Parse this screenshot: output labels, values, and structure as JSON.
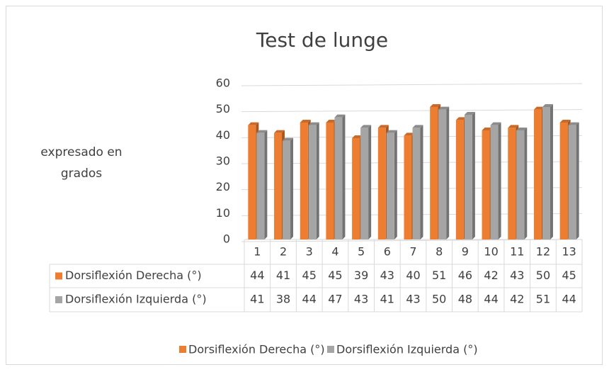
{
  "chart_data": {
    "type": "bar",
    "title": "Test de lunge",
    "y_label": "expresado en grados",
    "categories": [
      "1",
      "2",
      "3",
      "4",
      "5",
      "6",
      "7",
      "8",
      "9",
      "10",
      "11",
      "12",
      "13"
    ],
    "series": [
      {
        "name": "Dorsiflexión Derecha (°)",
        "color": "#ED7D31",
        "values": [
          44,
          41,
          45,
          45,
          39,
          43,
          40,
          51,
          46,
          42,
          43,
          50,
          45
        ]
      },
      {
        "name": "Dorsiflexión Izquierda (°)",
        "color": "#A5A5A5",
        "values": [
          41,
          38,
          44,
          47,
          43,
          41,
          43,
          50,
          48,
          44,
          42,
          51,
          44
        ]
      }
    ],
    "ylim": [
      0,
      60
    ],
    "yticks": [
      0,
      10,
      20,
      30,
      40,
      50,
      60
    ],
    "grid": true,
    "legend": "bottom",
    "data_table": true
  }
}
